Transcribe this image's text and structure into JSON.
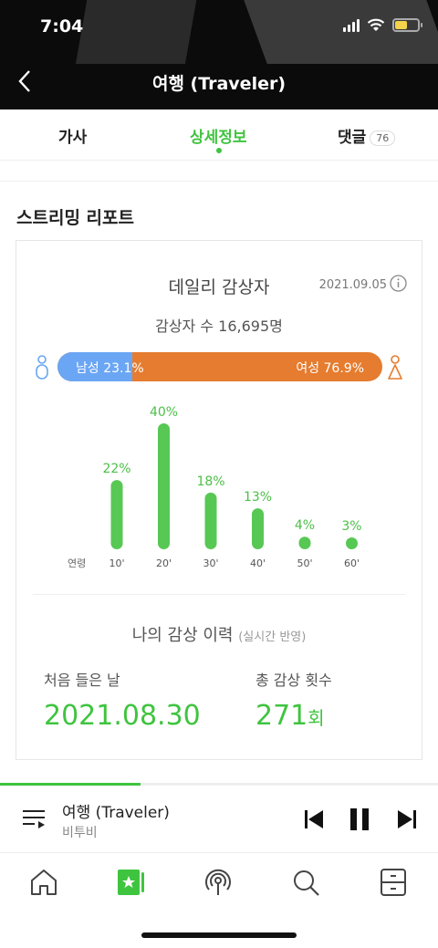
{
  "status": {
    "time": "7:04"
  },
  "nav": {
    "title": "여행 (Traveler)"
  },
  "tabs": [
    {
      "label": "가사"
    },
    {
      "label": "상세정보",
      "active": true
    },
    {
      "label": "댓글",
      "badge": "76"
    }
  ],
  "section_title": "스트리밍 리포트",
  "daily": {
    "title": "데일리 감상자",
    "date": "2021.09.05",
    "listeners": "감상자 수 16,695명",
    "male_label": "남성 23.1%",
    "female_label": "여성 76.9%",
    "male_fraction": 0.231
  },
  "chart_data": {
    "type": "bar",
    "xlabel": "연령",
    "categories": [
      "10'",
      "20'",
      "30'",
      "40'",
      "50'",
      "60'"
    ],
    "values": [
      22,
      40,
      18,
      13,
      4,
      3
    ],
    "value_labels": [
      "22%",
      "40%",
      "18%",
      "13%",
      "4%",
      "3%"
    ],
    "ylim": [
      0,
      40
    ],
    "color": "#57c854"
  },
  "history": {
    "title": "나의 감상 이력",
    "subtitle": "(실시간 반영)",
    "first_label": "처음 들은 날",
    "first_value": "2021.08.30",
    "count_label": "총 감상 횟수",
    "count_value": "271",
    "count_unit": "회"
  },
  "player": {
    "title": "여행 (Traveler)",
    "artist": "비투비",
    "progress": 0.32
  },
  "colors": {
    "accent": "#3fc43f",
    "male": "#6aa6f4",
    "female": "#e57c2f"
  },
  "icons": {
    "back": "chevron-left-icon",
    "info": "info-icon",
    "playlist": "playlist-icon",
    "prev": "skip-previous-icon",
    "pause": "pause-icon",
    "next": "skip-next-icon",
    "home": "home-icon",
    "music": "music-library-icon",
    "podcast": "podcast-icon",
    "search": "search-icon",
    "storage": "storage-icon"
  }
}
